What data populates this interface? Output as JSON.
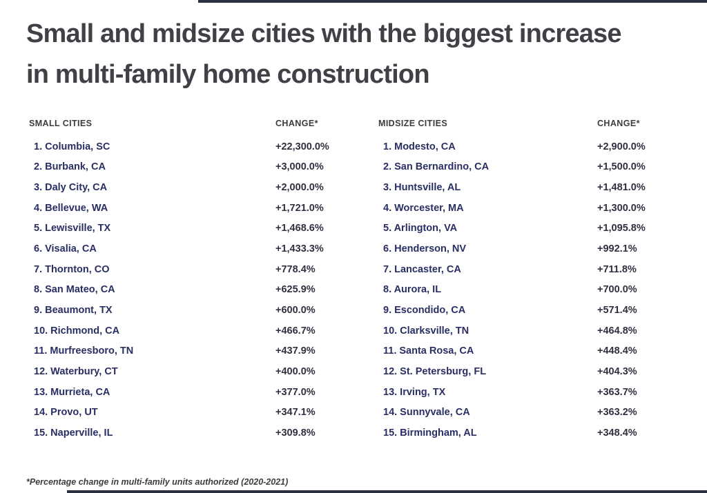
{
  "header": {
    "title_line1": "Small and midsize cities with the biggest increase",
    "title_line2": "in multi-family home construction"
  },
  "chart_data": {
    "type": "table",
    "title": "Small and midsize cities with the biggest increase in multi-family home construction",
    "footnote": "*Percentage change in multi-family units authorized (2020-2021)",
    "tables": [
      {
        "name": "small_cities",
        "columns": [
          "SMALL CITIES",
          "CHANGE*"
        ],
        "rows": [
          [
            "1. Columbia, SC",
            "+22,300.0%"
          ],
          [
            "2. Burbank, CA",
            "+3,000.0%"
          ],
          [
            "3. Daly City, CA",
            "+2,000.0%"
          ],
          [
            "4. Bellevue, WA",
            "+1,721.0%"
          ],
          [
            "5. Lewisville, TX",
            "+1,468.6%"
          ],
          [
            "6. Visalia, CA",
            "+1,433.3%"
          ],
          [
            "7. Thornton, CO",
            "+778.4%"
          ],
          [
            "8. San Mateo, CA",
            "+625.9%"
          ],
          [
            "9. Beaumont, TX",
            "+600.0%"
          ],
          [
            "10. Richmond, CA",
            "+466.7%"
          ],
          [
            "11. Murfreesboro, TN",
            "+437.9%"
          ],
          [
            "12. Waterbury, CT",
            "+400.0%"
          ],
          [
            "13. Murrieta, CA",
            "+377.0%"
          ],
          [
            "14. Provo, UT",
            "+347.1%"
          ],
          [
            "15. Naperville, IL",
            "+309.8%"
          ]
        ]
      },
      {
        "name": "midsize_cities",
        "columns": [
          "MIDSIZE CITIES",
          "CHANGE*"
        ],
        "rows": [
          [
            "1. Modesto, CA",
            "+2,900.0%"
          ],
          [
            "2. San Bernardino, CA",
            "+1,500.0%"
          ],
          [
            "3. Huntsville, AL",
            "+1,481.0%"
          ],
          [
            "4. Worcester, MA",
            "+1,300.0%"
          ],
          [
            "5. Arlington, VA",
            "+1,095.8%"
          ],
          [
            "6. Henderson, NV",
            "+992.1%"
          ],
          [
            "7. Lancaster, CA",
            "+711.8%"
          ],
          [
            "8. Aurora, IL",
            "+700.0%"
          ],
          [
            "9. Escondido, CA",
            "+571.4%"
          ],
          [
            "10. Clarksville, TN",
            "+464.8%"
          ],
          [
            "11. Santa Rosa, CA",
            "+448.4%"
          ],
          [
            "12. St. Petersburg, FL",
            "+404.3%"
          ],
          [
            "13. Irving, TX",
            "+363.7%"
          ],
          [
            "14. Sunnyvale, CA",
            "+363.2%"
          ],
          [
            "15. Birmingham, AL",
            "+348.4%"
          ]
        ]
      }
    ],
    "layout": {
      "legend": "none",
      "grid": "off"
    }
  },
  "colors": {
    "title_text": "#3f4147",
    "column_header_text": "#3b3c40",
    "city_text": "#292e63",
    "change_text": "#2f3040",
    "edge_bar": "#2b3140",
    "background": "#ffffff"
  }
}
